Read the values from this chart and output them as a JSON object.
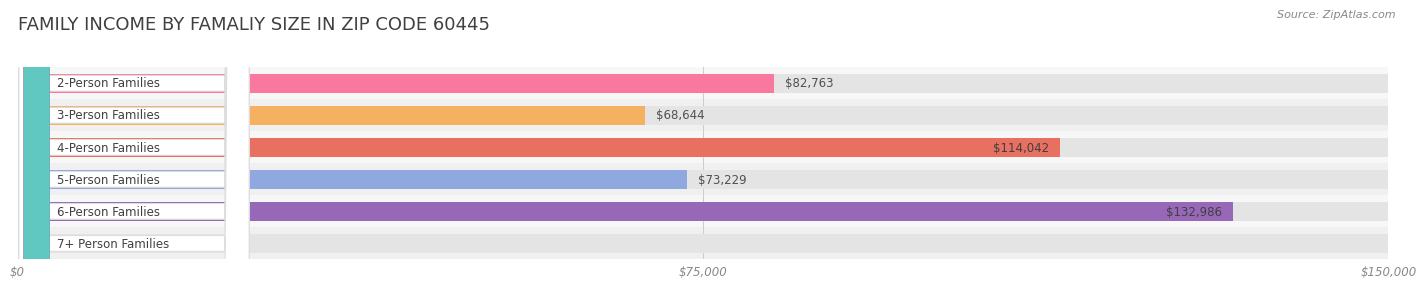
{
  "title": "FAMILY INCOME BY FAMALIY SIZE IN ZIP CODE 60445",
  "source": "Source: ZipAtlas.com",
  "categories": [
    "2-Person Families",
    "3-Person Families",
    "4-Person Families",
    "5-Person Families",
    "6-Person Families",
    "7+ Person Families"
  ],
  "values": [
    82763,
    68644,
    114042,
    73229,
    132986,
    0
  ],
  "bar_colors": [
    "#F878A0",
    "#F5B060",
    "#E87060",
    "#90A8E0",
    "#9868B8",
    "#60C8C0"
  ],
  "xmax": 150000,
  "xticks": [
    0,
    75000,
    150000
  ],
  "xticklabels": [
    "$0",
    "$75,000",
    "$150,000"
  ],
  "title_fontsize": 13,
  "label_fontsize": 8.5,
  "value_fontsize": 8.5,
  "source_fontsize": 8,
  "bar_height": 0.58,
  "background_color": "#FFFFFF",
  "title_color": "#404040",
  "tick_label_color": "#888888",
  "source_color": "#888888"
}
